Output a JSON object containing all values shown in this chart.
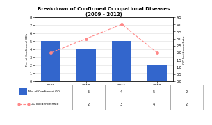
{
  "title": "Breakdown of Confirmed Occupational Diseases\n(2009 - 2012)",
  "years": [
    "2009",
    "2010",
    "2011",
    "2012"
  ],
  "bar_values": [
    5,
    4,
    5,
    2
  ],
  "line_values": [
    2,
    3,
    4,
    2
  ],
  "bar_color": "#3366CC",
  "line_color": "#FF8888",
  "ylabel_left": "No. of Confirmed ODs",
  "ylabel_right": "OD Incidence Rate",
  "ylim_left": [
    0,
    8
  ],
  "ylim_right": [
    0,
    4.5
  ],
  "legend_label_bar": "No. of Confirmed OD",
  "legend_label_line": "OD Incidence Rate",
  "table_row1": [
    "5",
    "4",
    "5",
    "2"
  ],
  "table_row2": [
    "2",
    "3",
    "4",
    "2"
  ],
  "background_color": "#FFFFFF",
  "grid_color": "#DDDDDD"
}
